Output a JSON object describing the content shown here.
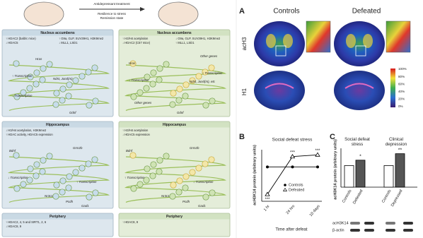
{
  "schematic": {
    "header_lines": [
      "Antidepressant treatment",
      "Resilience to stress",
      "Remission state"
    ],
    "columns": [
      {
        "sections": [
          {
            "title": "Nucleus accumbens",
            "changes": [
              "↑ HDAC2 (balb/c mice)",
              "↓ HDAC5",
              "↑ G9a, GLP, SUV39H1, H3K9me2",
              "↓ MLL1, LSD1"
            ],
            "genes": [
              "Hras",
              "↑ Transcription",
              "Ndst, Jund(m)",
              "↓ Transcription",
              "Gdnf"
            ]
          },
          {
            "title": "Hippocampus",
            "changes": [
              "↓ H3/H4 acetylation, H3K9me2",
              "↑ HDAC activity, HDAC5 expression"
            ],
            "genes": [
              "Bdnf",
              "Grm2b",
              "↓ Transcription",
              "↑ Transcription",
              "Nr3c1",
              "Pcdh",
              "Gad1"
            ]
          },
          {
            "title": "Periphery",
            "changes": [
              "↑ HDAC2, 4, 5 and SIRT1, 2, 6",
              "↓ HDAC8, 9"
            ],
            "genes": []
          }
        ]
      },
      {
        "sections": [
          {
            "title": "Nucleus accumbens",
            "changes": [
              "↑ H3/H4 acetylation",
              "↓ HDAC2 (C57 mice)",
              "↓ G9a, GLP, SUV39H1, H3K9me2",
              "↑ MLL1, LSD1"
            ],
            "genes": [
              "Hras",
              "↓ Transcription",
              "Other genes",
              "Ndst, Jund(m), etc",
              "Other genes",
              "↑ Transcription",
              "Gdnf"
            ]
          },
          {
            "title": "Hippocampus",
            "changes": [
              "↑ H3/H4 acetylation",
              "↓ HDAC5 expression"
            ],
            "genes": [
              "Bdnf",
              "Grm2b",
              "↑ Transcription",
              "↓ Transcription",
              "Nr3c1",
              "Pcdh",
              "Gad1"
            ]
          },
          {
            "title": "Periphery",
            "changes": [
              "↑ HDAC8, 9"
            ],
            "genes": []
          }
        ]
      }
    ]
  },
  "panel_a": {
    "label": "A",
    "columns": [
      "Controls",
      "Defeated"
    ],
    "rows": [
      "acH3",
      "H1"
    ],
    "scale": [
      "100%",
      "80%",
      "60%",
      "40%",
      "20%",
      "0%"
    ]
  },
  "panel_b": {
    "label": "B",
    "title": "Social defeat stress",
    "y_label": "acH3K14 protein (arbitrary units)",
    "x_label": "Time after defeat",
    "categories": [
      "1 hr",
      "24 hrs",
      "10 days"
    ],
    "ylim": [
      0,
      1.5
    ],
    "series": [
      {
        "name": "Controls",
        "values": [
          1,
          1,
          1
        ]
      },
      {
        "name": "Defeated",
        "values": [
          0.2,
          1.3,
          1.35
        ]
      }
    ],
    "significance": [
      "***",
      "***",
      "***"
    ]
  },
  "panel_c": {
    "label": "C",
    "groups": [
      "Social defeat stress",
      "Clinical depression"
    ],
    "y_label": "acH3K14 protein (arbitrary units)",
    "categories": [
      "Controls",
      "Defeated",
      "Controls",
      "Depressed"
    ],
    "values": [
      1,
      1.25,
      1,
      1.55
    ],
    "ylim": [
      0,
      1.8
    ],
    "significance": [
      "*",
      "**"
    ],
    "blot_labels": [
      "acH3K14",
      "β-actin"
    ]
  }
}
